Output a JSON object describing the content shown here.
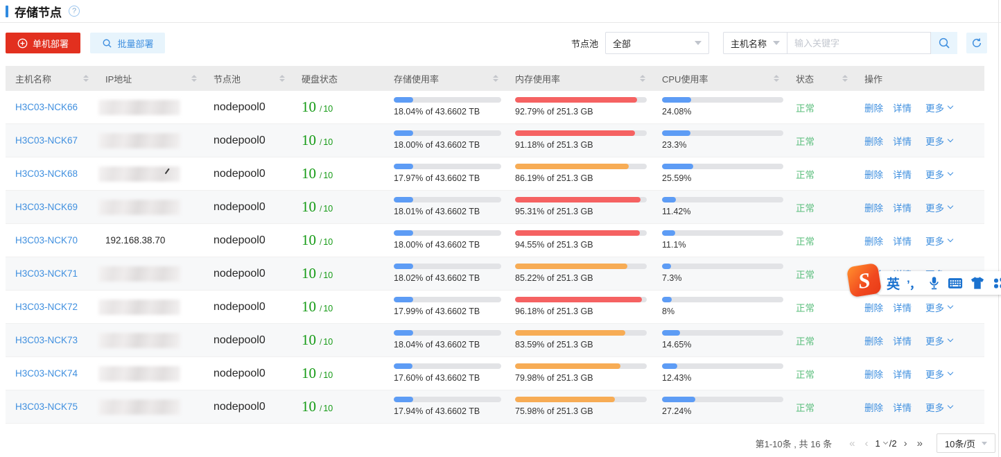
{
  "page": {
    "title": "存储节点"
  },
  "icons": {
    "help_glyph": "?"
  },
  "toolbar": {
    "deploy_single": "单机部署",
    "deploy_batch": "批量部署"
  },
  "filters": {
    "node_pool_label": "节点池",
    "node_pool_selected": "全部",
    "search_field_selected": "主机名称",
    "search_placeholder": "输入关键字"
  },
  "table": {
    "columns": [
      {
        "key": "host",
        "label": "主机名称",
        "sortable": true
      },
      {
        "key": "ip",
        "label": "IP地址",
        "sortable": true
      },
      {
        "key": "pool",
        "label": "节点池",
        "sortable": true
      },
      {
        "key": "disk",
        "label": "硬盘状态",
        "sortable": false
      },
      {
        "key": "storage",
        "label": "存储使用率",
        "sortable": true
      },
      {
        "key": "memory",
        "label": "内存使用率",
        "sortable": true
      },
      {
        "key": "cpu",
        "label": "CPU使用率",
        "sortable": true
      },
      {
        "key": "status",
        "label": "状态",
        "sortable": true
      },
      {
        "key": "ops",
        "label": "操作",
        "sortable": false
      }
    ],
    "disk_separator": "/",
    "row_actions": [
      "删除",
      "详情",
      "更多"
    ],
    "rows": [
      {
        "host": "H3C03-NCK66",
        "ip": "",
        "ip_redacted": true,
        "artifact": false,
        "pool": "nodepool0",
        "disk_current": "10",
        "disk_total": "10",
        "storage": {
          "percent": 18.04,
          "label": "18.04% of 43.6602 TB",
          "color": "blue"
        },
        "memory": {
          "percent": 92.79,
          "label": "92.79% of 251.3 GB",
          "color": "red"
        },
        "cpu": {
          "percent": 24.08,
          "label": "24.08%",
          "color": "blue"
        },
        "status": "正常"
      },
      {
        "host": "H3C03-NCK67",
        "ip": "",
        "ip_redacted": true,
        "artifact": false,
        "pool": "nodepool0",
        "disk_current": "10",
        "disk_total": "10",
        "storage": {
          "percent": 18.0,
          "label": "18.00% of 43.6602 TB",
          "color": "blue"
        },
        "memory": {
          "percent": 91.18,
          "label": "91.18% of 251.3 GB",
          "color": "red"
        },
        "cpu": {
          "percent": 23.3,
          "label": "23.3%",
          "color": "blue"
        },
        "status": "正常"
      },
      {
        "host": "H3C03-NCK68",
        "ip": "",
        "ip_redacted": true,
        "artifact": true,
        "pool": "nodepool0",
        "disk_current": "10",
        "disk_total": "10",
        "storage": {
          "percent": 17.97,
          "label": "17.97% of 43.6602 TB",
          "color": "blue"
        },
        "memory": {
          "percent": 86.19,
          "label": "86.19% of 251.3 GB",
          "color": "orange"
        },
        "cpu": {
          "percent": 25.59,
          "label": "25.59%",
          "color": "blue"
        },
        "status": "正常"
      },
      {
        "host": "H3C03-NCK69",
        "ip": "",
        "ip_redacted": true,
        "artifact": false,
        "pool": "nodepool0",
        "disk_current": "10",
        "disk_total": "10",
        "storage": {
          "percent": 18.01,
          "label": "18.01% of 43.6602 TB",
          "color": "blue"
        },
        "memory": {
          "percent": 95.31,
          "label": "95.31% of 251.3 GB",
          "color": "red"
        },
        "cpu": {
          "percent": 11.42,
          "label": "11.42%",
          "color": "blue"
        },
        "status": "正常"
      },
      {
        "host": "H3C03-NCK70",
        "ip": "192.168.38.70",
        "ip_redacted": false,
        "artifact": false,
        "pool": "nodepool0",
        "disk_current": "10",
        "disk_total": "10",
        "storage": {
          "percent": 18.0,
          "label": "18.00% of 43.6602 TB",
          "color": "blue"
        },
        "memory": {
          "percent": 94.55,
          "label": "94.55% of 251.3 GB",
          "color": "red"
        },
        "cpu": {
          "percent": 11.1,
          "label": "11.1%",
          "color": "blue"
        },
        "status": "正常"
      },
      {
        "host": "H3C03-NCK71",
        "ip": "",
        "ip_redacted": true,
        "artifact": false,
        "pool": "nodepool0",
        "disk_current": "10",
        "disk_total": "10",
        "storage": {
          "percent": 18.02,
          "label": "18.02% of 43.6602 TB",
          "color": "blue"
        },
        "memory": {
          "percent": 85.22,
          "label": "85.22% of 251.3 GB",
          "color": "orange"
        },
        "cpu": {
          "percent": 7.3,
          "label": "7.3%",
          "color": "blue"
        },
        "status": "正常"
      },
      {
        "host": "H3C03-NCK72",
        "ip": "",
        "ip_redacted": true,
        "artifact": false,
        "pool": "nodepool0",
        "disk_current": "10",
        "disk_total": "10",
        "storage": {
          "percent": 17.99,
          "label": "17.99% of 43.6602 TB",
          "color": "blue"
        },
        "memory": {
          "percent": 96.18,
          "label": "96.18% of 251.3 GB",
          "color": "red"
        },
        "cpu": {
          "percent": 8,
          "label": "8%",
          "color": "blue"
        },
        "status": "正常"
      },
      {
        "host": "H3C03-NCK73",
        "ip": "",
        "ip_redacted": true,
        "artifact": false,
        "pool": "nodepool0",
        "disk_current": "10",
        "disk_total": "10",
        "storage": {
          "percent": 18.04,
          "label": "18.04% of 43.6602 TB",
          "color": "blue"
        },
        "memory": {
          "percent": 83.59,
          "label": "83.59% of 251.3 GB",
          "color": "orange"
        },
        "cpu": {
          "percent": 14.65,
          "label": "14.65%",
          "color": "blue"
        },
        "status": "正常"
      },
      {
        "host": "H3C03-NCK74",
        "ip": "",
        "ip_redacted": true,
        "artifact": false,
        "pool": "nodepool0",
        "disk_current": "10",
        "disk_total": "10",
        "storage": {
          "percent": 17.6,
          "label": "17.60% of 43.6602 TB",
          "color": "blue"
        },
        "memory": {
          "percent": 79.98,
          "label": "79.98% of 251.3 GB",
          "color": "orange"
        },
        "cpu": {
          "percent": 12.43,
          "label": "12.43%",
          "color": "blue"
        },
        "status": "正常"
      },
      {
        "host": "H3C03-NCK75",
        "ip": "",
        "ip_redacted": true,
        "artifact": false,
        "pool": "nodepool0",
        "disk_current": "10",
        "disk_total": "10",
        "storage": {
          "percent": 17.94,
          "label": "17.94% of 43.6602 TB",
          "color": "blue"
        },
        "memory": {
          "percent": 75.98,
          "label": "75.98% of 251.3 GB",
          "color": "orange"
        },
        "cpu": {
          "percent": 27.24,
          "label": "27.24%",
          "color": "blue"
        },
        "status": "正常"
      }
    ]
  },
  "pagination": {
    "summary": "第1-10条 , 共 16 条",
    "first_icon": "«",
    "prev_icon": "‹",
    "current_page": "1",
    "total_pages": "/2",
    "next_icon": "›",
    "last_icon": "»",
    "page_size": "10条/页"
  },
  "ime": {
    "logo_letter": "S",
    "mode_label": "英",
    "punct_label": "’，"
  },
  "colors": {
    "accent_blue": "#3f8fdf",
    "deploy_red": "#e2301f",
    "bar_blue": "#5d9cf5",
    "bar_red": "#f56262",
    "bar_orange": "#f7ac55",
    "disk_green": "#149a14",
    "status_green": "#58bd7a"
  }
}
